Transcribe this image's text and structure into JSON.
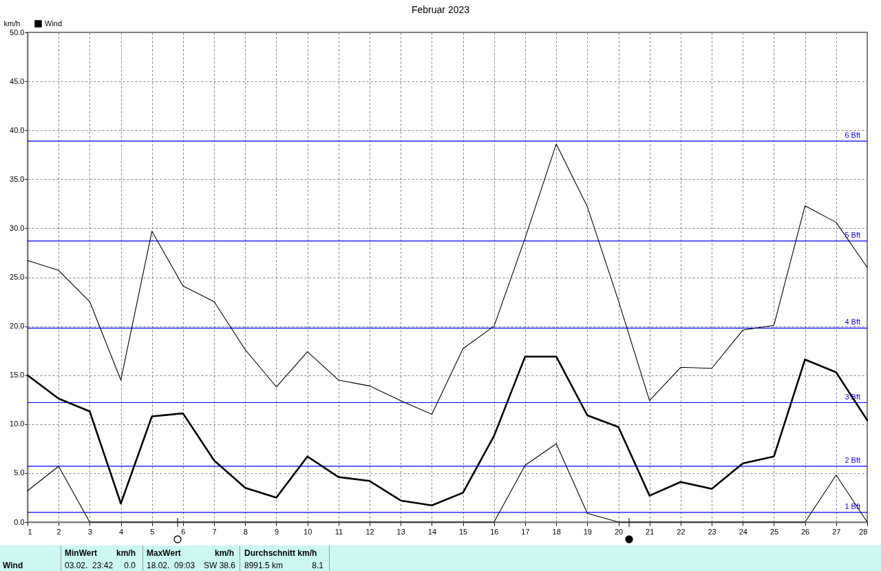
{
  "chart_data": {
    "type": "line",
    "title": "Februar 2023",
    "ylabel": "km/h",
    "x": [
      1,
      2,
      3,
      4,
      5,
      6,
      7,
      8,
      9,
      10,
      11,
      12,
      13,
      14,
      15,
      16,
      17,
      18,
      19,
      20,
      21,
      22,
      23,
      24,
      25,
      26,
      27,
      28
    ],
    "series": [
      {
        "color": "#000000",
        "values": [
          26.7,
          25.7,
          22.5,
          14.5,
          29.7,
          24.1,
          22.5,
          17.6,
          13.8,
          17.4,
          14.5,
          13.9,
          12.4,
          11.0,
          17.7,
          20.0,
          29.0,
          38.6,
          32.2,
          22.6,
          12.4,
          15.8,
          15.7,
          19.6,
          20.1,
          32.3,
          30.6,
          26.0
        ]
      },
      {
        "name": "Wind",
        "color": "#000000",
        "values": [
          15.0,
          12.6,
          11.3,
          1.9,
          10.8,
          11.1,
          6.3,
          3.5,
          2.5,
          6.7,
          4.6,
          4.2,
          2.2,
          1.7,
          3.0,
          8.8,
          16.9,
          16.9,
          10.9,
          9.7,
          2.7,
          4.1,
          3.4,
          6.0,
          6.7,
          16.6,
          15.3,
          10.4
        ]
      },
      {
        "color": "#000000",
        "values": [
          3.2,
          5.7,
          0,
          0,
          0,
          0,
          0,
          0,
          0,
          0,
          0,
          0,
          0,
          0,
          0,
          0,
          5.8,
          8.0,
          0.9,
          0,
          0,
          0,
          0,
          0,
          0,
          0,
          4.8,
          0
        ]
      }
    ],
    "xlim": [
      1,
      28
    ],
    "xticks": [
      1,
      2,
      3,
      4,
      5,
      6,
      7,
      8,
      9,
      10,
      11,
      12,
      13,
      14,
      15,
      16,
      17,
      18,
      19,
      20,
      21,
      22,
      23,
      24,
      25,
      26,
      27,
      28
    ],
    "ylim": [
      0,
      50
    ],
    "yticks": [
      {
        "value": 0,
        "label": "0.0"
      },
      {
        "value": 5,
        "label": "5.0"
      },
      {
        "value": 10,
        "label": "10.0"
      },
      {
        "value": 15,
        "label": "15.0"
      },
      {
        "value": 20,
        "label": "20.0"
      },
      {
        "value": 25,
        "label": "25.0"
      },
      {
        "value": 30,
        "label": "30.0"
      },
      {
        "value": 35,
        "label": "35.0"
      },
      {
        "value": 40,
        "label": "40.0"
      },
      {
        "value": 45,
        "label": "45.0"
      },
      {
        "value": 50,
        "label": "50.0"
      }
    ],
    "grid": true,
    "legend": "top left",
    "ref_lines": [
      {
        "axis": "y",
        "value": 38.9,
        "label": "6 Bft",
        "color": "#0000ff"
      },
      {
        "axis": "y",
        "value": 28.7,
        "label": "5 Bft",
        "color": "#0000ff"
      },
      {
        "axis": "y",
        "value": 19.8,
        "label": "4 Bft",
        "color": "#0000ff"
      },
      {
        "axis": "y",
        "value": 12.2,
        "label": "3 Bft",
        "color": "#0000ff"
      },
      {
        "axis": "y",
        "value": 5.7,
        "label": "2 Bft",
        "color": "#0000ff"
      },
      {
        "axis": "y",
        "value": 1.0,
        "label": "1 Bft",
        "color": "#0000ff"
      }
    ],
    "annotations": [
      "Wind",
      "MinWert",
      "km/h",
      "03.02.  23:42",
      "0.0",
      "MaxWert",
      "km/h",
      "18.02.  09:03",
      "SW 38.6",
      "Durchschnitt km/h",
      "8991.5 km",
      "8.1"
    ]
  }
}
